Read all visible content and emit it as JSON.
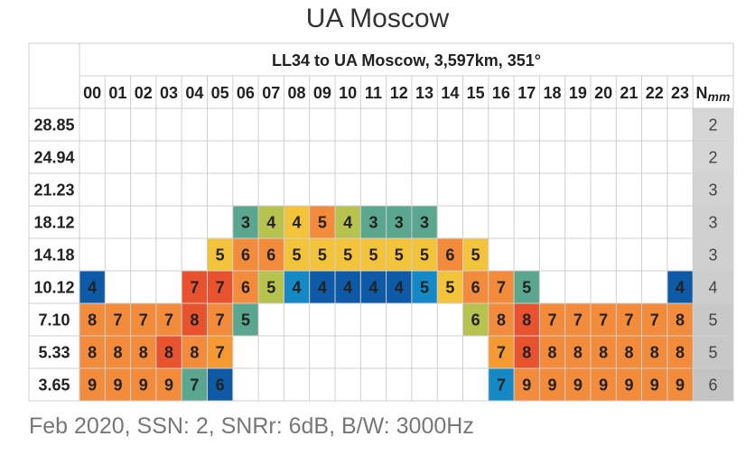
{
  "title": "UA Moscow",
  "footer": "Feb 2020, SSN: 2, SNRr: 6dB, B/W: 3000Hz",
  "chart_data": {
    "type": "heatmap",
    "title": "UA Moscow",
    "subtitle": "LL34 to UA Moscow, 3,597km, 351°",
    "hours": [
      "00",
      "01",
      "02",
      "03",
      "04",
      "05",
      "06",
      "07",
      "08",
      "09",
      "10",
      "11",
      "12",
      "13",
      "14",
      "15",
      "16",
      "17",
      "18",
      "19",
      "20",
      "21",
      "22",
      "23"
    ],
    "nmm_header": {
      "main": "N",
      "sub": "mm"
    },
    "rows": [
      {
        "freq": "28.85",
        "values": [
          null,
          null,
          null,
          null,
          null,
          null,
          null,
          null,
          null,
          null,
          null,
          null,
          null,
          null,
          null,
          null,
          null,
          null,
          null,
          null,
          null,
          null,
          null,
          null
        ],
        "nmm": "2"
      },
      {
        "freq": "24.94",
        "values": [
          null,
          null,
          null,
          null,
          null,
          null,
          null,
          null,
          null,
          null,
          null,
          null,
          null,
          null,
          null,
          null,
          null,
          null,
          null,
          null,
          null,
          null,
          null,
          null
        ],
        "nmm": "2"
      },
      {
        "freq": "21.23",
        "values": [
          null,
          null,
          null,
          null,
          null,
          null,
          null,
          null,
          null,
          null,
          null,
          null,
          null,
          null,
          null,
          null,
          null,
          null,
          null,
          null,
          null,
          null,
          null,
          null
        ],
        "nmm": "3"
      },
      {
        "freq": "18.12",
        "values": [
          null,
          null,
          null,
          null,
          null,
          null,
          3,
          4,
          4,
          5,
          4,
          3,
          3,
          3,
          null,
          null,
          null,
          null,
          null,
          null,
          null,
          null,
          null,
          null
        ],
        "nmm": "3"
      },
      {
        "freq": "14.18",
        "values": [
          null,
          null,
          null,
          null,
          null,
          5,
          6,
          6,
          5,
          5,
          5,
          5,
          5,
          5,
          6,
          5,
          null,
          null,
          null,
          null,
          null,
          null,
          null,
          null
        ],
        "nmm": "3"
      },
      {
        "freq": "10.12",
        "values": [
          4,
          null,
          null,
          null,
          7,
          7,
          6,
          5,
          4,
          4,
          4,
          4,
          4,
          5,
          5,
          6,
          7,
          5,
          null,
          null,
          null,
          null,
          null,
          4
        ],
        "nmm": "4"
      },
      {
        "freq": "7.10",
        "values": [
          8,
          7,
          7,
          7,
          8,
          7,
          5,
          null,
          null,
          null,
          null,
          null,
          null,
          null,
          null,
          6,
          8,
          8,
          7,
          7,
          7,
          7,
          7,
          8
        ],
        "nmm": "5"
      },
      {
        "freq": "5.33",
        "values": [
          8,
          8,
          8,
          8,
          8,
          7,
          null,
          null,
          null,
          null,
          null,
          null,
          null,
          null,
          null,
          null,
          7,
          8,
          8,
          8,
          8,
          8,
          8,
          8
        ],
        "nmm": "5"
      },
      {
        "freq": "3.65",
        "values": [
          9,
          9,
          9,
          9,
          7,
          6,
          null,
          null,
          null,
          null,
          null,
          null,
          null,
          null,
          null,
          null,
          7,
          9,
          9,
          9,
          9,
          9,
          9,
          9
        ],
        "nmm": "6"
      }
    ],
    "cell_colors": [
      [
        null,
        null,
        null,
        null,
        null,
        null,
        null,
        null,
        null,
        null,
        null,
        null,
        null,
        null,
        null,
        null,
        null,
        null,
        null,
        null,
        null,
        null,
        null,
        null
      ],
      [
        null,
        null,
        null,
        null,
        null,
        null,
        null,
        null,
        null,
        null,
        null,
        null,
        null,
        null,
        null,
        null,
        null,
        null,
        null,
        null,
        null,
        null,
        null,
        null
      ],
      [
        null,
        null,
        null,
        null,
        null,
        null,
        null,
        null,
        null,
        null,
        null,
        null,
        null,
        null,
        null,
        null,
        null,
        null,
        null,
        null,
        null,
        null,
        null,
        null
      ],
      [
        null,
        null,
        null,
        null,
        null,
        null,
        "#5aa68e",
        "#b8c24e",
        "#f4c33c",
        "#f28b3b",
        "#b8c24e",
        "#5aa68e",
        "#5aa68e",
        "#5aa68e",
        null,
        null,
        null,
        null,
        null,
        null,
        null,
        null,
        null,
        null
      ],
      [
        null,
        null,
        null,
        null,
        null,
        "#f4c33c",
        "#f28b3b",
        "#f28b3b",
        "#f4c33c",
        "#f4c33c",
        "#f4c33c",
        "#f4c33c",
        "#f4c33c",
        "#f4c33c",
        "#f28b3b",
        "#f4c33c",
        null,
        null,
        null,
        null,
        null,
        null,
        null,
        null
      ],
      [
        "#0e5aa7",
        null,
        null,
        null,
        "#e8522f",
        "#e8522f",
        "#f28b3b",
        "#b8c24e",
        "#1589c6",
        "#0e5aa7",
        "#0e5aa7",
        "#0e5aa7",
        "#0e5aa7",
        "#1589c6",
        "#f4c33c",
        "#f28b3b",
        "#f28b3b",
        "#5aa68e",
        null,
        null,
        null,
        null,
        null,
        "#0e5aa7"
      ],
      [
        "#f28b3b",
        "#f28b3b",
        "#f28b3b",
        "#f28b3b",
        "#e8522f",
        "#f28b3b",
        "#5aa68e",
        null,
        null,
        null,
        null,
        null,
        null,
        null,
        null,
        "#b8c24e",
        "#f28b3b",
        "#e8522f",
        "#f28b3b",
        "#f28b3b",
        "#f28b3b",
        "#f28b3b",
        "#f28b3b",
        "#f28b3b"
      ],
      [
        "#f28b3b",
        "#f28b3b",
        "#f28b3b",
        "#e8522f",
        "#f28b3b",
        "#f59a33",
        null,
        null,
        null,
        null,
        null,
        null,
        null,
        null,
        null,
        null,
        "#f59a33",
        "#e8522f",
        "#f28b3b",
        "#f28b3b",
        "#f28b3b",
        "#f28b3b",
        "#f28b3b",
        "#f28b3b"
      ],
      [
        "#f28b3b",
        "#f28b3b",
        "#f28b3b",
        "#f28b3b",
        "#5aa68e",
        "#0e5aa7",
        null,
        null,
        null,
        null,
        null,
        null,
        null,
        null,
        null,
        null,
        "#1589c6",
        "#f28b3b",
        "#f28b3b",
        "#f28b3b",
        "#f28b3b",
        "#f28b3b",
        "#f28b3b",
        "#f28b3b"
      ]
    ],
    "nmm_colors": [
      "#d6d6d6",
      "#d6d6d6",
      "#d3d3d3",
      "#d0d0d0",
      "#d0d0d0",
      "#cdcdcd",
      "#c8c8c8",
      "#c8c8c8",
      "#c3c3c3"
    ],
    "grid": true,
    "legend": "none"
  }
}
